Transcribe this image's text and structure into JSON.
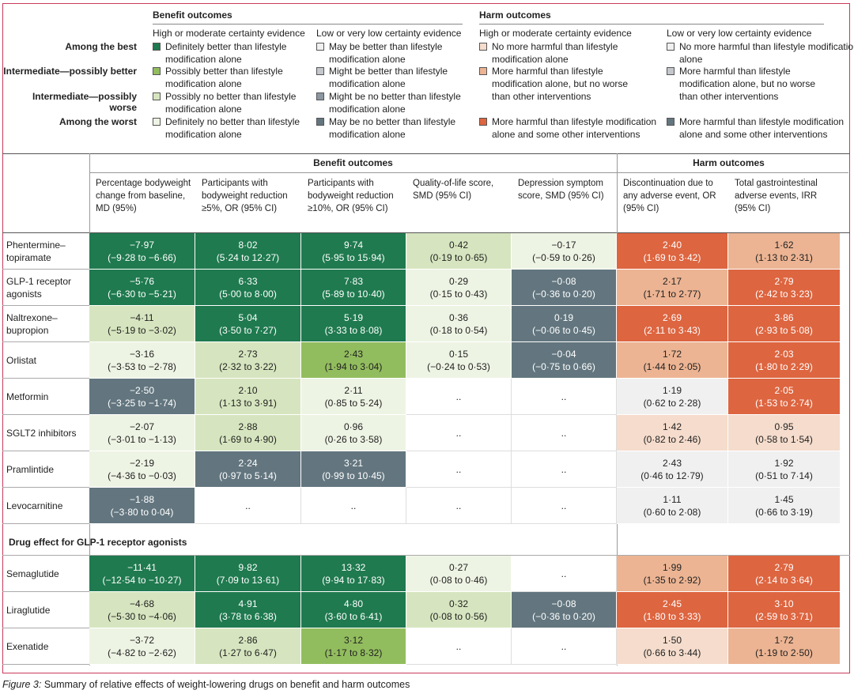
{
  "legend": {
    "benefit_title": "Benefit outcomes",
    "harm_title": "Harm outcomes",
    "high_cert": "High or moderate certainty evidence",
    "low_cert": "Low or very low certainty evidence",
    "row_labels": [
      "Among the best",
      "Intermediate—possibly better",
      "Intermediate—possibly worse",
      "Among the worst"
    ],
    "benefit_high": [
      "Definitely better than lifestyle modification alone",
      "Possibly better than lifestyle modification alone",
      "Possibly no better than lifestyle modification alone",
      "Definitely no better than lifestyle modification alone"
    ],
    "benefit_low": [
      "May be better than lifestyle modification alone",
      "Might be better than lifestyle modification alone",
      "Might be no better than lifestyle modification alone",
      "May be no better than lifestyle modification alone"
    ],
    "harm_high": [
      "No more harmful than lifestyle modification alone",
      "More harmful than lifestyle modification alone, but no worse than other interventions",
      "More harmful than lifestyle modification alone and some other interventions"
    ],
    "harm_low": [
      "No more harmful than lifestyle modification alone",
      "More harmful than lifestyle modification alone, but no worse than other interventions",
      "More harmful than lifestyle modification alone and some other interventions"
    ]
  },
  "colors": {
    "b_best_high": "#1f7a4f",
    "b_better_high": "#92bd5e",
    "b_worse_high": "#d6e5bf",
    "b_worst_high": "#eef4e4",
    "b_best_low": "#f0f0f0",
    "b_better_low": "#c4c7cb",
    "b_worse_low": "#8b97a1",
    "b_worst_low": "#63767f",
    "h_nomore_high": "#f5dccc",
    "h_more_high": "#ecb493",
    "h_worst_high": "#dd6540",
    "h_nomore_low": "#f0f0f0",
    "h_more_low": "#c4c7cb",
    "h_worst_low": "#63767f",
    "empty": "#ffffff"
  },
  "table": {
    "benefit_header": "Benefit outcomes",
    "harm_header": "Harm outcomes",
    "columns": [
      "Percentage bodyweight change from baseline, MD (95%)",
      "Participants with bodyweight reduction ≥5%, OR (95% CI)",
      "Participants with bodyweight reduction ≥10%, OR (95% CI)",
      "Quality-of-life score, SMD (95% CI)",
      "Depression symptom score, SMD (95% CI)",
      "Discontinuation due to any adverse event, OR (95% CI)",
      "Total gastrointestinal adverse events, IRR (95% CI)"
    ],
    "rows": [
      {
        "name": "Phentermine–topiramate",
        "cells": [
          {
            "v": "−7·97",
            "ci": "(−9·28 to −6·66)",
            "c": "b_best_high"
          },
          {
            "v": "8·02",
            "ci": "(5·24 to 12·27)",
            "c": "b_best_high"
          },
          {
            "v": "9·74",
            "ci": "(5·95 to 15·94)",
            "c": "b_best_high"
          },
          {
            "v": "0·42",
            "ci": "(0·19 to 0·65)",
            "c": "b_worse_high"
          },
          {
            "v": "−0·17",
            "ci": "(−0·59 to 0·26)",
            "c": "b_worst_high"
          },
          {
            "v": "2·40",
            "ci": "(1·69 to 3·42)",
            "c": "h_worst_high"
          },
          {
            "v": "1·62",
            "ci": "(1·13 to 2·31)",
            "c": "h_more_high"
          }
        ]
      },
      {
        "name": "GLP-1 receptor agonists",
        "cells": [
          {
            "v": "−5·76",
            "ci": "(−6·30 to −5·21)",
            "c": "b_best_high"
          },
          {
            "v": "6·33",
            "ci": "(5·00 to 8·00)",
            "c": "b_best_high"
          },
          {
            "v": "7·83",
            "ci": "(5·89 to 10·40)",
            "c": "b_best_high"
          },
          {
            "v": "0·29",
            "ci": "(0·15 to 0·43)",
            "c": "b_worst_high"
          },
          {
            "v": "−0·08",
            "ci": "(−0·36 to 0·20)",
            "c": "b_worst_low"
          },
          {
            "v": "2·17",
            "ci": "(1·71 to 2·77)",
            "c": "h_more_high"
          },
          {
            "v": "2·79",
            "ci": "(2·42 to 3·23)",
            "c": "h_worst_high"
          }
        ]
      },
      {
        "name": "Naltrexone–bupropion",
        "cells": [
          {
            "v": "−4·11",
            "ci": "(−5·19 to −3·02)",
            "c": "b_worse_high"
          },
          {
            "v": "5·04",
            "ci": "(3·50 to 7·27)",
            "c": "b_best_high"
          },
          {
            "v": "5·19",
            "ci": "(3·33 to 8·08)",
            "c": "b_best_high"
          },
          {
            "v": "0·36",
            "ci": "(0·18 to 0·54)",
            "c": "b_worst_high"
          },
          {
            "v": "0·19",
            "ci": "(−0·06 to 0·45)",
            "c": "b_worst_low"
          },
          {
            "v": "2·69",
            "ci": "(2·11 to 3·43)",
            "c": "h_worst_high"
          },
          {
            "v": "3·86",
            "ci": "(2·93 to 5·08)",
            "c": "h_worst_high"
          }
        ]
      },
      {
        "name": "Orlistat",
        "cells": [
          {
            "v": "−3·16",
            "ci": "(−3·53 to −2·78)",
            "c": "b_worst_high"
          },
          {
            "v": "2·73",
            "ci": "(2·32 to 3·22)",
            "c": "b_worse_high"
          },
          {
            "v": "2·43",
            "ci": "(1·94 to 3·04)",
            "c": "b_better_high"
          },
          {
            "v": "0·15",
            "ci": "(−0·24 to 0·53)",
            "c": "b_worst_high"
          },
          {
            "v": "−0·04",
            "ci": "(−0·75 to 0·66)",
            "c": "b_worst_low"
          },
          {
            "v": "1·72",
            "ci": "(1·44 to 2·05)",
            "c": "h_more_high"
          },
          {
            "v": "2·03",
            "ci": "(1·80 to 2·29)",
            "c": "h_worst_high"
          }
        ]
      },
      {
        "name": "Metformin",
        "cells": [
          {
            "v": "−2·50",
            "ci": "(−3·25 to −1·74)",
            "c": "b_worst_low"
          },
          {
            "v": "2·10",
            "ci": "(1·13 to 3·91)",
            "c": "b_worse_high"
          },
          {
            "v": "2·11",
            "ci": "(0·85 to 5·24)",
            "c": "b_worst_high"
          },
          {
            "v": "..",
            "ci": "",
            "c": "empty"
          },
          {
            "v": "..",
            "ci": "",
            "c": "empty"
          },
          {
            "v": "1·19",
            "ci": "(0·62 to 2·28)",
            "c": "h_nomore_low"
          },
          {
            "v": "2·05",
            "ci": "(1·53 to 2·74)",
            "c": "h_worst_high"
          }
        ]
      },
      {
        "name": "SGLT2 inhibitors",
        "cells": [
          {
            "v": "−2·07",
            "ci": "(−3·01 to −1·13)",
            "c": "b_worst_high"
          },
          {
            "v": "2·88",
            "ci": "(1·69 to 4·90)",
            "c": "b_worse_high"
          },
          {
            "v": "0·96",
            "ci": "(0·26 to 3·58)",
            "c": "b_worst_high"
          },
          {
            "v": "..",
            "ci": "",
            "c": "empty"
          },
          {
            "v": "..",
            "ci": "",
            "c": "empty"
          },
          {
            "v": "1·42",
            "ci": "(0·82 to 2·46)",
            "c": "h_nomore_high"
          },
          {
            "v": "0·95",
            "ci": "(0·58 to 1·54)",
            "c": "h_nomore_high"
          }
        ]
      },
      {
        "name": "Pramlintide",
        "cells": [
          {
            "v": "−2·19",
            "ci": "(−4·36 to −0·03)",
            "c": "b_worst_high"
          },
          {
            "v": "2·24",
            "ci": "(0·97 to 5·14)",
            "c": "b_worst_low"
          },
          {
            "v": "3·21",
            "ci": "(0·99 to 10·45)",
            "c": "b_worst_low"
          },
          {
            "v": "..",
            "ci": "",
            "c": "empty"
          },
          {
            "v": "..",
            "ci": "",
            "c": "empty"
          },
          {
            "v": "2·43",
            "ci": "(0·46 to 12·79)",
            "c": "h_nomore_low"
          },
          {
            "v": "1·92",
            "ci": "(0·51 to 7·14)",
            "c": "h_nomore_low"
          }
        ]
      },
      {
        "name": "Levocarnitine",
        "cells": [
          {
            "v": "−1·88",
            "ci": "(−3·80 to 0·04)",
            "c": "b_worst_low"
          },
          {
            "v": "..",
            "ci": "",
            "c": "empty"
          },
          {
            "v": "..",
            "ci": "",
            "c": "empty"
          },
          {
            "v": "..",
            "ci": "",
            "c": "empty"
          },
          {
            "v": "..",
            "ci": "",
            "c": "empty"
          },
          {
            "v": "1·11",
            "ci": "(0·60 to 2·08)",
            "c": "h_nomore_low"
          },
          {
            "v": "1·45",
            "ci": "(0·66 to 3·19)",
            "c": "h_nomore_low"
          }
        ]
      }
    ],
    "section_label": "Drug effect for GLP-1 receptor agonists",
    "rows2": [
      {
        "name": "Semaglutide",
        "cells": [
          {
            "v": "−11·41",
            "ci": "(−12·54 to −10·27)",
            "c": "b_best_high"
          },
          {
            "v": "9·82",
            "ci": "(7·09 to 13·61)",
            "c": "b_best_high"
          },
          {
            "v": "13·32",
            "ci": "(9·94 to 17·83)",
            "c": "b_best_high"
          },
          {
            "v": "0·27",
            "ci": "(0·08 to 0·46)",
            "c": "b_worst_high"
          },
          {
            "v": "..",
            "ci": "",
            "c": "empty"
          },
          {
            "v": "1·99",
            "ci": "(1·35 to 2·92)",
            "c": "h_more_high"
          },
          {
            "v": "2·79",
            "ci": "(2·14 to 3·64)",
            "c": "h_worst_high"
          }
        ]
      },
      {
        "name": "Liraglutide",
        "cells": [
          {
            "v": "−4·68",
            "ci": "(−5·30 to −4·06)",
            "c": "b_worse_high"
          },
          {
            "v": "4·91",
            "ci": "(3·78 to 6·38)",
            "c": "b_best_high"
          },
          {
            "v": "4·80",
            "ci": "(3·60 to 6·41)",
            "c": "b_best_high"
          },
          {
            "v": "0·32",
            "ci": "(0·08 to 0·56)",
            "c": "b_worse_high"
          },
          {
            "v": "−0·08",
            "ci": "(−0·36 to 0·20)",
            "c": "b_worst_low"
          },
          {
            "v": "2·45",
            "ci": "(1·80 to 3·33)",
            "c": "h_worst_high"
          },
          {
            "v": "3·10",
            "ci": "(2·59 to 3·71)",
            "c": "h_worst_high"
          }
        ]
      },
      {
        "name": "Exenatide",
        "cells": [
          {
            "v": "−3·72",
            "ci": "(−4·82 to −2·62)",
            "c": "b_worst_high"
          },
          {
            "v": "2·86",
            "ci": "(1·27 to 6·47)",
            "c": "b_worse_high"
          },
          {
            "v": "3·12",
            "ci": "(1·17 to 8·32)",
            "c": "b_better_high"
          },
          {
            "v": "..",
            "ci": "",
            "c": "empty"
          },
          {
            "v": "..",
            "ci": "",
            "c": "empty"
          },
          {
            "v": "1·50",
            "ci": "(0·66 to 3·44)",
            "c": "h_nomore_high"
          },
          {
            "v": "1·72",
            "ci": "(1·19 to 2·50)",
            "c": "h_more_high"
          }
        ]
      }
    ]
  },
  "caption": {
    "label": "Figure 3:",
    "text": " Summary of relative effects of weight-lowering drugs on benefit and harm outcomes"
  }
}
